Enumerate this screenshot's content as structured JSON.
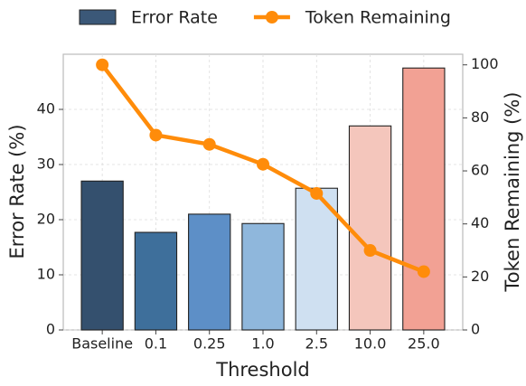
{
  "chart_data": {
    "type": "bar_line",
    "xlabel": "Threshold",
    "ylabel": "Error Rate (%)",
    "y2label": "Token Remaining (%)",
    "categories": [
      "Baseline",
      "0.1",
      "0.25",
      "1.0",
      "2.5",
      "10.0",
      "25.0"
    ],
    "series": [
      {
        "name": "Error Rate",
        "type": "bar",
        "color": "#3b5878",
        "colors": [
          "#34506e",
          "#3e6f9b",
          "#5d8fc7",
          "#8fb7dc",
          "#cfe0f1",
          "#f4c6bc",
          "#f2a194"
        ],
        "values": [
          27,
          17.7,
          21,
          19.3,
          25.7,
          37,
          47.5
        ]
      },
      {
        "name": "Token Remaining",
        "type": "line",
        "axis": "y2",
        "color": "#ff8c0a",
        "values": [
          100,
          73.5,
          70,
          62.5,
          51.5,
          30,
          22
        ]
      }
    ],
    "ylim": [
      0,
      50
    ],
    "yticks": [
      0,
      10,
      20,
      30,
      40
    ],
    "y2lim": [
      0,
      104
    ],
    "y2ticks": [
      0,
      20,
      40,
      60,
      80,
      100
    ],
    "grid": true
  }
}
